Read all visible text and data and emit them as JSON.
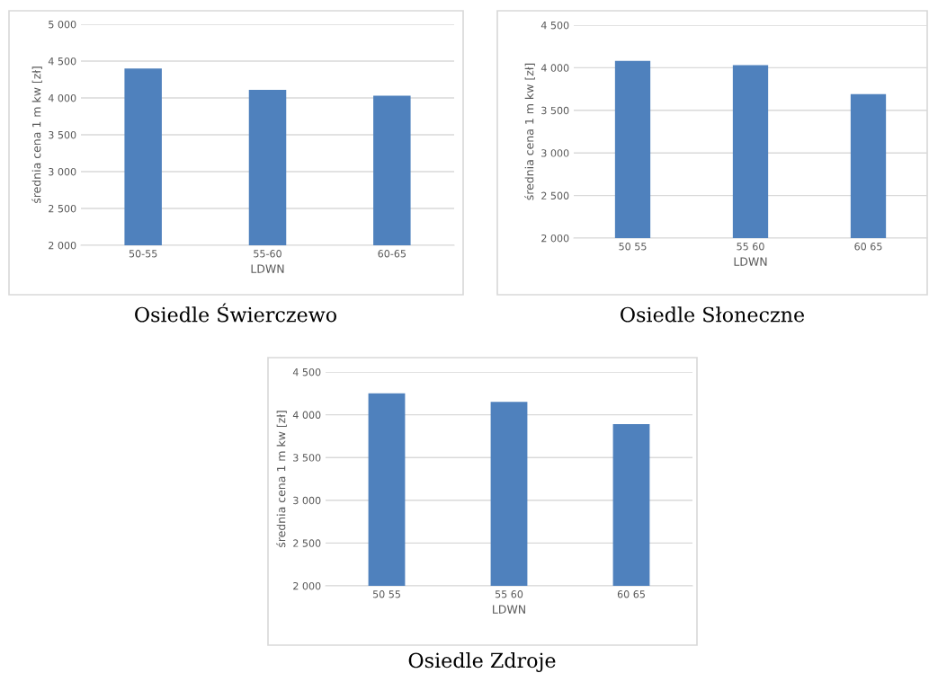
{
  "chart_data": [
    {
      "type": "bar",
      "title": "Osiedle Świerczewo",
      "xlabel": "LDWN",
      "ylabel": "średnia cena 1 m kw [zł]",
      "categories": [
        "50-55",
        "55-60",
        "60-65"
      ],
      "values": [
        4400,
        4110,
        4030
      ],
      "color": "#4f81bd",
      "ylim": [
        2000,
        5000
      ],
      "yticks": [
        {
          "value": 2000,
          "label": "2 000"
        },
        {
          "value": 2500,
          "label": "2 500"
        },
        {
          "value": 3000,
          "label": "3 000"
        },
        {
          "value": 3500,
          "label": "3 500"
        },
        {
          "value": 4000,
          "label": "4 000"
        },
        {
          "value": 4500,
          "label": "4 500"
        },
        {
          "value": 5000,
          "label": "5 000"
        }
      ],
      "grid": "y"
    },
    {
      "type": "bar",
      "title": "Osiedle Słoneczne",
      "xlabel": "LDWN",
      "ylabel": "średnia cena 1 m kw [zł]",
      "categories": [
        "50 55",
        "55 60",
        "60 65"
      ],
      "values": [
        4080,
        4030,
        3690
      ],
      "color": "#4f81bd",
      "ylim": [
        2000,
        4500
      ],
      "yticks": [
        {
          "value": 2000,
          "label": "2 000"
        },
        {
          "value": 2500,
          "label": "2 500"
        },
        {
          "value": 3000,
          "label": "3 000"
        },
        {
          "value": 3500,
          "label": "3 500"
        },
        {
          "value": 4000,
          "label": "4 000"
        },
        {
          "value": 4500,
          "label": "4 500"
        }
      ],
      "grid": "y"
    },
    {
      "type": "bar",
      "title": "Osiedle Zdroje",
      "xlabel": "LDWN",
      "ylabel": "średnia cena 1 m kw [zł]",
      "categories": [
        "50 55",
        "55 60",
        "60 65"
      ],
      "values": [
        4250,
        4150,
        3890
      ],
      "color": "#4f81bd",
      "ylim": [
        2000,
        4500
      ],
      "yticks": [
        {
          "value": 2000,
          "label": "2 000"
        },
        {
          "value": 2500,
          "label": "2 500"
        },
        {
          "value": 3000,
          "label": "3 000"
        },
        {
          "value": 3500,
          "label": "3 500"
        },
        {
          "value": 4000,
          "label": "4 000"
        },
        {
          "value": 4500,
          "label": "4 500"
        }
      ],
      "grid": "y"
    }
  ]
}
